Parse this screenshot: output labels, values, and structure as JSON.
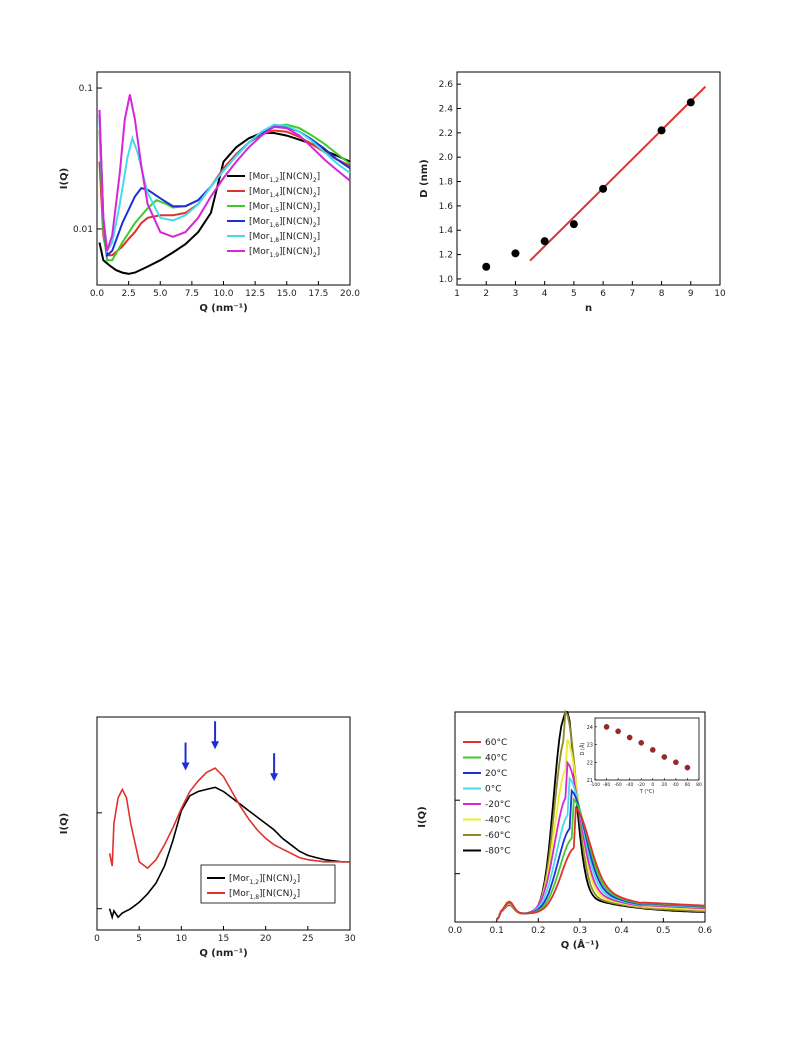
{
  "colors": {
    "black": "#000000",
    "red": "#e0322c",
    "green": "#3ccc2a",
    "blue": "#1f2fd6",
    "cyan": "#44dcec",
    "magenta": "#d627d6",
    "yellow": "#eded2a",
    "olive": "#8e8a2a",
    "arrow": "#1f2fd6",
    "dot_fill": "#a8241f"
  },
  "chart_data": [
    {
      "id": "saxs-alkyl-series",
      "type": "line",
      "xlabel": "Q (nm⁻¹)",
      "ylabel": "I(Q)",
      "xlim": [
        0,
        20
      ],
      "ylim": [
        0.004,
        0.13
      ],
      "yscale": "log",
      "xticks": [
        "0.0",
        "2.5",
        "5.0",
        "7.5",
        "10.0",
        "12.5",
        "15.0",
        "17.5",
        "20.0"
      ],
      "yticks": [
        "0.01",
        "0.1"
      ],
      "legend": {
        "placement": "center-right",
        "items": [
          {
            "base": "[Mor",
            "sub": "1,2",
            "mid": "][N(CN)",
            "sub2": "2",
            "end": "]",
            "color": "#000000"
          },
          {
            "base": "[Mor",
            "sub": "1,4",
            "mid": "][N(CN)",
            "sub2": "2",
            "end": "]",
            "color": "#e0322c"
          },
          {
            "base": "[Mor",
            "sub": "1,5",
            "mid": "][N(CN)",
            "sub2": "2",
            "end": "]",
            "color": "#3ccc2a"
          },
          {
            "base": "[Mor",
            "sub": "1,6",
            "mid": "][N(CN)",
            "sub2": "2",
            "end": "]",
            "color": "#1f2fd6"
          },
          {
            "base": "[Mor",
            "sub": "1,8",
            "mid": "][N(CN)",
            "sub2": "2",
            "end": "]",
            "color": "#44dcec"
          },
          {
            "base": "[Mor",
            "sub": "1,9",
            "mid": "][N(CN)",
            "sub2": "2",
            "end": "]",
            "color": "#d627d6"
          }
        ]
      },
      "series": [
        {
          "color": "#000000",
          "x": [
            0.2,
            0.5,
            1,
            1.5,
            2,
            2.5,
            3,
            4,
            5,
            6,
            7,
            8,
            9,
            10,
            11,
            12,
            13,
            14,
            15,
            16,
            17,
            18,
            19,
            20
          ],
          "values": [
            0.008,
            0.006,
            0.0055,
            0.0051,
            0.0049,
            0.0048,
            0.0049,
            0.0054,
            0.006,
            0.0068,
            0.0078,
            0.0095,
            0.013,
            0.03,
            0.038,
            0.044,
            0.048,
            0.048,
            0.046,
            0.043,
            0.04,
            0.036,
            0.033,
            0.03
          ]
        },
        {
          "color": "#e0322c",
          "x": [
            0.2,
            0.5,
            0.8,
            1.2,
            2,
            2.5,
            3,
            3.5,
            4,
            5,
            6,
            7,
            8,
            9,
            10,
            11,
            12,
            13,
            14,
            15,
            16,
            17,
            18,
            19,
            20
          ],
          "values": [
            0.03,
            0.009,
            0.0065,
            0.0065,
            0.0075,
            0.0085,
            0.0095,
            0.011,
            0.012,
            0.0125,
            0.0125,
            0.013,
            0.015,
            0.02,
            0.027,
            0.034,
            0.041,
            0.047,
            0.05,
            0.049,
            0.045,
            0.04,
            0.035,
            0.031,
            0.028
          ]
        },
        {
          "color": "#3ccc2a",
          "x": [
            0.2,
            0.5,
            0.8,
            1.2,
            2,
            3,
            4,
            4.7,
            5.5,
            6,
            7,
            8,
            9,
            10,
            11,
            12,
            13,
            14,
            15,
            16,
            17,
            18,
            19,
            20
          ],
          "values": [
            0.05,
            0.01,
            0.006,
            0.006,
            0.008,
            0.011,
            0.014,
            0.016,
            0.015,
            0.0142,
            0.0145,
            0.016,
            0.02,
            0.026,
            0.033,
            0.041,
            0.048,
            0.054,
            0.055,
            0.052,
            0.046,
            0.04,
            0.034,
            0.029
          ]
        },
        {
          "color": "#1f2fd6",
          "x": [
            0.2,
            0.5,
            0.8,
            1.2,
            2,
            3,
            3.5,
            4,
            5,
            6,
            7,
            8,
            9,
            10,
            11,
            12,
            13,
            14,
            15,
            16,
            17,
            18,
            19,
            20
          ],
          "values": [
            0.065,
            0.012,
            0.0065,
            0.007,
            0.011,
            0.017,
            0.0195,
            0.019,
            0.0165,
            0.0145,
            0.0145,
            0.016,
            0.02,
            0.026,
            0.033,
            0.041,
            0.048,
            0.054,
            0.053,
            0.049,
            0.043,
            0.037,
            0.031,
            0.027
          ]
        },
        {
          "color": "#44dcec",
          "x": [
            0.2,
            0.5,
            0.8,
            1.2,
            1.8,
            2.4,
            2.8,
            3.2,
            4,
            5,
            6,
            7,
            8,
            9,
            10,
            11,
            12,
            13,
            14,
            15,
            16,
            17,
            18,
            19,
            20
          ],
          "values": [
            0.06,
            0.012,
            0.007,
            0.008,
            0.015,
            0.032,
            0.044,
            0.035,
            0.018,
            0.012,
            0.0115,
            0.0125,
            0.015,
            0.02,
            0.026,
            0.033,
            0.041,
            0.049,
            0.055,
            0.054,
            0.049,
            0.042,
            0.035,
            0.029,
            0.025
          ]
        },
        {
          "color": "#d627d6",
          "x": [
            0.2,
            0.5,
            0.8,
            1.2,
            1.8,
            2.2,
            2.6,
            3,
            3.5,
            4,
            5,
            6,
            7,
            8,
            9,
            10,
            11,
            12,
            13,
            14,
            15,
            16,
            17,
            18,
            19,
            20
          ],
          "values": [
            0.07,
            0.012,
            0.007,
            0.009,
            0.025,
            0.06,
            0.09,
            0.06,
            0.028,
            0.015,
            0.0095,
            0.0088,
            0.0095,
            0.012,
            0.017,
            0.023,
            0.03,
            0.038,
            0.046,
            0.053,
            0.052,
            0.046,
            0.038,
            0.031,
            0.026,
            0.022
          ]
        }
      ]
    },
    {
      "id": "d-spacing-vs-n",
      "type": "scatter",
      "xlabel": "n",
      "ylabel": "D (nm)",
      "xlim": [
        1,
        10
      ],
      "ylim": [
        0.95,
        2.7
      ],
      "xticks": [
        "1",
        "2",
        "3",
        "4",
        "5",
        "6",
        "7",
        "8",
        "9",
        "10"
      ],
      "yticks": [
        "1.0",
        "1.2",
        "1.4",
        "1.6",
        "1.8",
        "2.0",
        "2.2",
        "2.4",
        "2.6"
      ],
      "points": {
        "x": [
          2,
          3,
          4,
          5,
          6,
          8,
          9
        ],
        "y": [
          1.1,
          1.21,
          1.31,
          1.45,
          1.74,
          2.22,
          2.45
        ]
      },
      "fit_line": {
        "x": [
          3.5,
          9.5
        ],
        "y": [
          1.15,
          2.58
        ],
        "color": "#e0322c"
      }
    },
    {
      "id": "saxs-two-salts",
      "type": "line",
      "xlabel": "Q (nm⁻¹)",
      "ylabel": "I(Q)",
      "xlim": [
        0,
        30
      ],
      "ylim": [
        0,
        1
      ],
      "xticks": [
        "0",
        "5",
        "10",
        "15",
        "20",
        "25",
        "30"
      ],
      "legend": {
        "placement": "bottom-right",
        "items": [
          {
            "base": "[Mor",
            "sub": "1,2",
            "mid": "][N(CN)",
            "sub2": "2",
            "end": "]",
            "color": "#000000"
          },
          {
            "base": "[Mor",
            "sub": "1,8",
            "mid": "][N(CN)",
            "sub2": "2",
            "end": "]",
            "color": "#e0322c"
          }
        ]
      },
      "arrows_x": [
        10.5,
        14,
        21
      ],
      "series": [
        {
          "color": "#000000",
          "x": [
            1.5,
            1.8,
            2,
            2.5,
            3,
            4,
            5,
            6,
            7,
            8,
            9,
            10,
            11,
            12,
            13,
            14,
            15,
            16,
            17,
            18,
            19,
            20,
            21,
            22,
            23,
            24,
            25,
            26,
            27,
            28,
            29,
            30
          ],
          "values": [
            0.1,
            0.06,
            0.09,
            0.06,
            0.08,
            0.1,
            0.13,
            0.17,
            0.22,
            0.3,
            0.42,
            0.56,
            0.63,
            0.65,
            0.66,
            0.67,
            0.65,
            0.62,
            0.59,
            0.56,
            0.53,
            0.5,
            0.47,
            0.43,
            0.4,
            0.37,
            0.35,
            0.34,
            0.33,
            0.325,
            0.32,
            0.32
          ]
        },
        {
          "color": "#e0322c",
          "x": [
            1.5,
            1.8,
            2,
            2.5,
            3,
            3.5,
            4,
            5,
            6,
            7,
            8,
            9,
            10,
            11,
            12,
            13,
            14,
            15,
            16,
            17,
            18,
            19,
            20,
            21,
            22,
            23,
            24,
            25,
            26,
            27,
            28,
            29,
            30
          ],
          "values": [
            0.36,
            0.3,
            0.5,
            0.62,
            0.66,
            0.62,
            0.5,
            0.32,
            0.29,
            0.33,
            0.4,
            0.48,
            0.57,
            0.65,
            0.7,
            0.74,
            0.76,
            0.72,
            0.65,
            0.58,
            0.52,
            0.47,
            0.43,
            0.4,
            0.38,
            0.36,
            0.34,
            0.33,
            0.325,
            0.32,
            0.32,
            0.32,
            0.32
          ]
        }
      ]
    },
    {
      "id": "saxs-temperature",
      "type": "line",
      "xlabel": "Q (Å⁻¹)",
      "ylabel": "I(Q)",
      "xlim": [
        0,
        0.6
      ],
      "ylim": [
        0,
        1
      ],
      "xticks": [
        "0.0",
        "0.1",
        "0.2",
        "0.3",
        "0.4",
        "0.5",
        "0.6"
      ],
      "legend": {
        "placement": "top-left",
        "items": [
          {
            "label": "60°C",
            "color": "#e0322c"
          },
          {
            "label": "40°C",
            "color": "#3ccc2a"
          },
          {
            "label": "20°C",
            "color": "#1f2fd6"
          },
          {
            "label": "0°C",
            "color": "#44dcec"
          },
          {
            "label": "-20°C",
            "color": "#d627d6"
          },
          {
            "label": "-40°C",
            "color": "#eded2a"
          },
          {
            "label": "-60°C",
            "color": "#8e8a2a"
          },
          {
            "label": "-80°C",
            "color": "#000000"
          }
        ]
      },
      "peak_heights": [
        0.34,
        0.39,
        0.44,
        0.51,
        0.6,
        0.74,
        0.9,
        1.0
      ],
      "peak_q": [
        0.29,
        0.285,
        0.28,
        0.275,
        0.27,
        0.268,
        0.265,
        0.262
      ],
      "inset": {
        "type": "scatter",
        "xlabel": "T (°C)",
        "ylabel": "D (Å)",
        "xlim": [
          -100,
          80
        ],
        "ylim": [
          21,
          24.5
        ],
        "xticks": [
          "-100",
          "-80",
          "-60",
          "-40",
          "-20",
          "0",
          "20",
          "40",
          "60",
          "80"
        ],
        "yticks": [
          "21",
          "22",
          "23",
          "24"
        ],
        "points": {
          "x": [
            -80,
            -60,
            -40,
            -20,
            0,
            20,
            40,
            60
          ],
          "y": [
            24.0,
            23.75,
            23.4,
            23.1,
            22.7,
            22.3,
            22.0,
            21.7
          ]
        }
      }
    }
  ]
}
